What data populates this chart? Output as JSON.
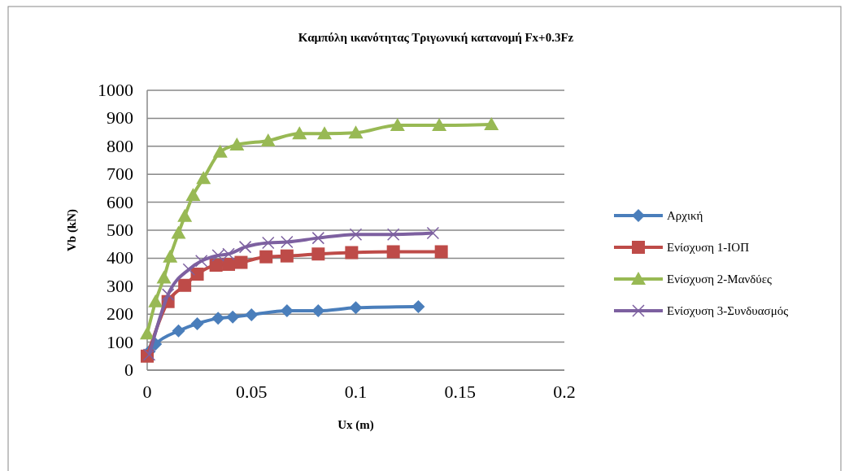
{
  "chart_data": {
    "type": "line",
    "title": "Καμπύλη ικανότητας Τριγωνική κατανομή Fx+0.3Fz",
    "xlabel": "Ux (m)",
    "ylabel": "Vb (kN)",
    "xlim": [
      0,
      0.2
    ],
    "xticks": [
      0,
      0.05,
      0.1,
      0.15,
      0.2
    ],
    "ylim": [
      0,
      1000
    ],
    "yticks": [
      0,
      100,
      200,
      300,
      400,
      500,
      600,
      700,
      800,
      900,
      1000
    ],
    "grid": "y",
    "legend": "right",
    "series": [
      {
        "name": "Αρχική",
        "color": "#4a7ebb",
        "marker": "diamond",
        "x": [
          0.001,
          0.004,
          0.015,
          0.024,
          0.034,
          0.041,
          0.05,
          0.067,
          0.082,
          0.1,
          0.13
        ],
        "values": [
          67,
          93,
          140,
          166,
          185,
          190,
          198,
          212,
          212,
          223,
          227
        ]
      },
      {
        "name": "Ενίσχυση 1-ΙΟΠ",
        "color": "#be4b48",
        "marker": "square",
        "x": [
          0,
          0.01,
          0.018,
          0.024,
          0.033,
          0.039,
          0.045,
          0.057,
          0.067,
          0.082,
          0.098,
          0.118,
          0.141
        ],
        "values": [
          50,
          245,
          303,
          343,
          375,
          378,
          385,
          405,
          408,
          415,
          420,
          423,
          423
        ]
      },
      {
        "name": "Ενίσχυση 2-Μανδύες",
        "color": "#98b954",
        "marker": "triangle",
        "x": [
          0,
          0.004,
          0.008,
          0.011,
          0.015,
          0.018,
          0.022,
          0.027,
          0.035,
          0.043,
          0.058,
          0.073,
          0.085,
          0.1,
          0.12,
          0.14,
          0.165
        ],
        "values": [
          130,
          245,
          330,
          405,
          490,
          550,
          625,
          685,
          780,
          805,
          820,
          845,
          845,
          848,
          875,
          875,
          878
        ]
      },
      {
        "name": "Ενίσχυση 3-Συνδυασμός",
        "color": "#7d60a0",
        "marker": "cross",
        "x": [
          0.001,
          0.01,
          0.02,
          0.026,
          0.034,
          0.039,
          0.047,
          0.058,
          0.067,
          0.082,
          0.1,
          0.118,
          0.137
        ],
        "values": [
          55,
          270,
          360,
          390,
          410,
          415,
          440,
          455,
          458,
          472,
          485,
          485,
          490
        ]
      }
    ]
  }
}
